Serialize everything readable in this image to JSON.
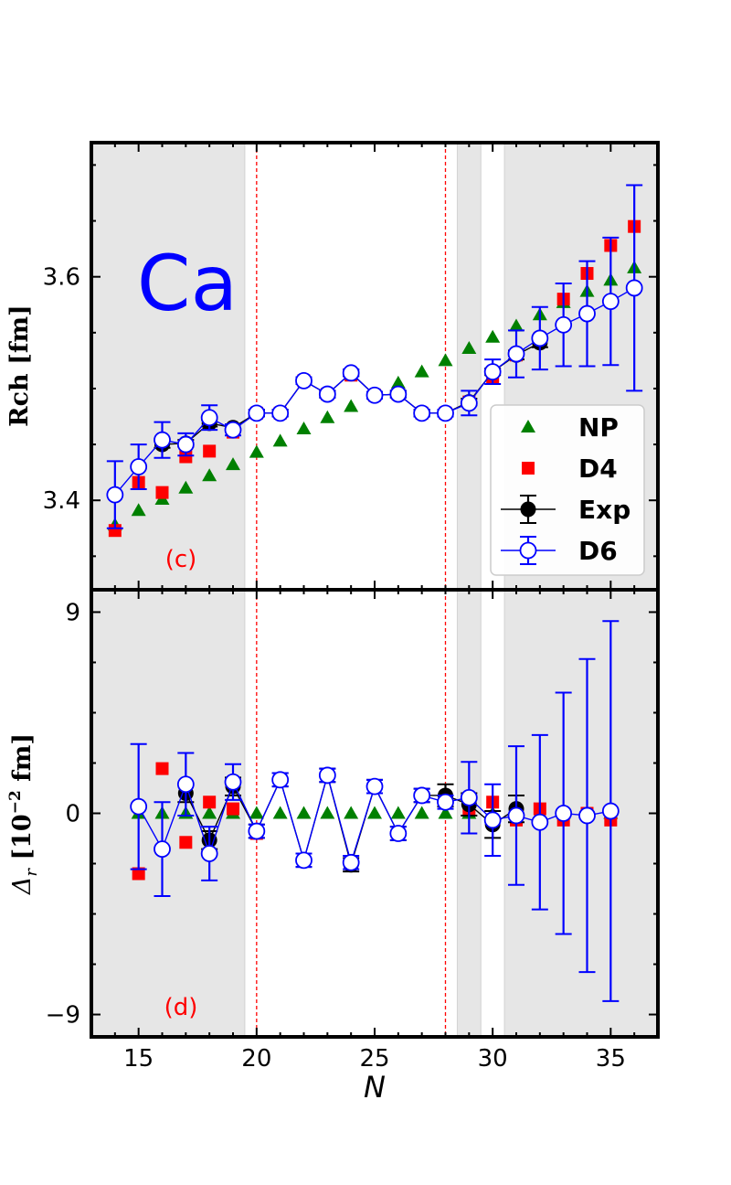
{
  "chart_data": [
    {
      "type": "scatter",
      "panel_label": "(c)",
      "annotation": "Ca",
      "ylabel": "Rch [fm]",
      "xlim": [
        13,
        37
      ],
      "ylim": [
        3.32,
        3.72
      ],
      "y_ticks": [
        3.4,
        3.6
      ],
      "y_tick_labels": [
        "3.4",
        "3.6"
      ],
      "shaded_x_ranges": [
        [
          13,
          19.5
        ],
        [
          28.5,
          29.5
        ],
        [
          30.5,
          37
        ]
      ],
      "vlines": [
        20,
        28
      ],
      "legend_position": "lower-right",
      "legend": [
        "NP",
        "D4",
        "Exp",
        "D6"
      ],
      "series": [
        {
          "name": "NP",
          "marker": "triangle",
          "color": "#008000",
          "x": [
            14,
            15,
            16,
            17,
            18,
            19,
            20,
            21,
            22,
            23,
            24,
            25,
            26,
            27,
            28,
            29,
            30,
            31,
            32,
            33,
            34,
            35,
            36
          ],
          "y": [
            3.378,
            3.391,
            3.401,
            3.411,
            3.422,
            3.432,
            3.443,
            3.453,
            3.464,
            3.474,
            3.484,
            3.495,
            3.505,
            3.515,
            3.525,
            3.536,
            3.546,
            3.556,
            3.566,
            3.577,
            3.587,
            3.597,
            3.608
          ]
        },
        {
          "name": "D4",
          "marker": "square",
          "color": "#ff0000",
          "x": [
            14,
            15,
            16,
            17,
            18,
            19,
            20,
            21,
            22,
            23,
            24,
            25,
            26,
            27,
            28,
            29,
            30,
            31,
            32,
            33,
            34,
            35,
            36
          ],
          "y": [
            3.373,
            3.416,
            3.407,
            3.439,
            3.444,
            3.461,
            3.478,
            3.478,
            3.507,
            3.495,
            3.512,
            3.494,
            3.495,
            3.478,
            3.478,
            3.488,
            3.51,
            3.53,
            3.545,
            3.58,
            3.603,
            3.628,
            3.645
          ]
        },
        {
          "name": "Exp",
          "marker": "circle-filled",
          "color": "#000000",
          "x": [
            16,
            17,
            18,
            19,
            20,
            21,
            22,
            23,
            24,
            25,
            26,
            27,
            28,
            29,
            30,
            31,
            32
          ],
          "y": [
            3.45,
            3.451,
            3.469,
            3.465,
            3.478,
            3.478,
            3.507,
            3.495,
            3.514,
            3.494,
            3.495,
            3.478,
            3.478,
            3.488,
            3.515,
            3.53,
            3.541
          ],
          "err": [
            0.003,
            0.003,
            0.003,
            0.003,
            0.003,
            0.003,
            0.003,
            0.003,
            0.003,
            0.003,
            0.003,
            0.003,
            0.003,
            0.003,
            0.003,
            0.004,
            0.004
          ]
        },
        {
          "name": "D6",
          "marker": "circle-open",
          "color": "#0000ff",
          "x": [
            14,
            15,
            16,
            17,
            18,
            19,
            20,
            21,
            22,
            23,
            24,
            25,
            26,
            27,
            28,
            29,
            30,
            31,
            32,
            33,
            34,
            35,
            36
          ],
          "y": [
            3.405,
            3.43,
            3.454,
            3.45,
            3.474,
            3.463,
            3.478,
            3.478,
            3.507,
            3.495,
            3.514,
            3.494,
            3.495,
            3.478,
            3.478,
            3.487,
            3.515,
            3.531,
            3.545,
            3.557,
            3.567,
            3.578,
            3.59
          ],
          "err": [
            0.03,
            0.02,
            0.016,
            0.01,
            0.011,
            0.005,
            0.003,
            0.003,
            0.003,
            0.003,
            0.003,
            0.003,
            0.003,
            0.003,
            0.003,
            0.011,
            0.011,
            0.021,
            0.028,
            0.037,
            0.047,
            0.057,
            0.092
          ]
        }
      ]
    },
    {
      "type": "scatter",
      "panel_label": "(d)",
      "xlabel": "N",
      "ylabel": "Δr [10^-2 fm]",
      "xlim": [
        13,
        37
      ],
      "ylim": [
        -10,
        10
      ],
      "x_ticks": [
        15,
        20,
        25,
        30,
        35
      ],
      "x_tick_labels": [
        "15",
        "20",
        "25",
        "30",
        "35"
      ],
      "y_ticks": [
        -9,
        0,
        9
      ],
      "y_tick_labels": [
        "−9",
        "0",
        "9"
      ],
      "shaded_x_ranges": [
        [
          13,
          19.5
        ],
        [
          28.5,
          29.5
        ],
        [
          30.5,
          37
        ]
      ],
      "vlines": [
        20,
        28
      ],
      "series": [
        {
          "name": "NP",
          "marker": "triangle",
          "color": "#008000",
          "x": [
            15,
            16,
            17,
            18,
            19,
            20,
            21,
            22,
            23,
            24,
            25,
            26,
            27,
            28,
            29,
            30,
            31,
            32,
            33,
            34,
            35
          ],
          "y": [
            0,
            0,
            0,
            0,
            0,
            0,
            0,
            0,
            0,
            0,
            0,
            0,
            0,
            0,
            0,
            0,
            0,
            0,
            0,
            0,
            0
          ]
        },
        {
          "name": "D4",
          "marker": "square",
          "color": "#ff0000",
          "x": [
            15,
            16,
            17,
            18,
            19,
            20,
            21,
            22,
            23,
            24,
            25,
            26,
            27,
            28,
            29,
            30,
            31,
            32,
            33,
            34,
            35
          ],
          "y": [
            -2.7,
            2.0,
            -1.3,
            0.5,
            0.2,
            -0.9,
            1.5,
            -2.1,
            1.7,
            -2.2,
            1.2,
            -0.9,
            0.8,
            0.6,
            0.2,
            0.5,
            -0.3,
            0.2,
            -0.3,
            0.0,
            -0.3
          ]
        },
        {
          "name": "Exp",
          "marker": "circle-filled",
          "color": "#000000",
          "x": [
            17,
            18,
            19,
            20,
            21,
            22,
            23,
            24,
            25,
            26,
            27,
            28,
            29,
            30,
            31
          ],
          "y": [
            0.9,
            -1.2,
            1.2,
            -0.8,
            1.5,
            -2.1,
            1.7,
            -2.3,
            1.2,
            -0.9,
            0.8,
            0.8,
            0.4,
            -0.5,
            0.2
          ],
          "err": [
            0.4,
            0.4,
            0.4,
            0.3,
            0.3,
            0.3,
            0.3,
            0.3,
            0.3,
            0.3,
            0.3,
            0.5,
            0.5,
            0.6,
            0.6
          ]
        },
        {
          "name": "D6",
          "marker": "circle-open",
          "color": "#0000ff",
          "x": [
            15,
            16,
            17,
            18,
            19,
            20,
            21,
            22,
            23,
            24,
            25,
            26,
            27,
            28,
            29,
            30,
            31,
            32,
            33,
            34,
            35
          ],
          "y": [
            0.3,
            -1.6,
            1.3,
            -1.8,
            1.4,
            -0.8,
            1.5,
            -2.1,
            1.7,
            -2.2,
            1.2,
            -0.9,
            0.8,
            0.5,
            0.7,
            -0.3,
            -0.1,
            -0.4,
            0.0,
            -0.1,
            0.1
          ],
          "err": [
            2.8,
            2.1,
            1.4,
            1.2,
            0.8,
            0.3,
            0.3,
            0.3,
            0.3,
            0.3,
            0.3,
            0.3,
            0.3,
            0.3,
            1.6,
            1.6,
            3.1,
            3.9,
            5.4,
            7.0,
            8.5
          ]
        }
      ]
    }
  ]
}
